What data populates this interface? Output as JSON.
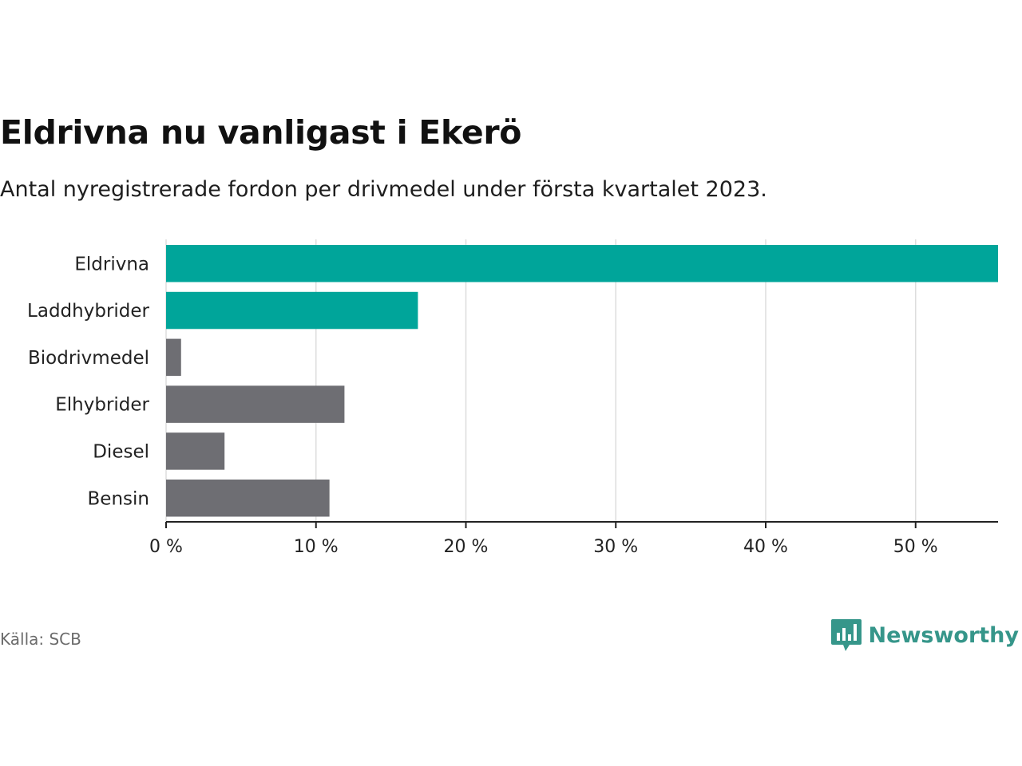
{
  "header": {
    "title": "Eldrivna nu vanligast i Ekerö",
    "subtitle": "Antal nyregistrerade fordon per drivmedel under första kvartalet 2023."
  },
  "footer": {
    "source": "Källa: SCB",
    "brand": "Newsworthy",
    "brand_icon": "bar-chart-speech-bubble-icon",
    "brand_color": "#36968a"
  },
  "colors": {
    "highlight": "#00a59a",
    "muted": "#6e6e73",
    "grid": "#dddddd",
    "axis": "#222222"
  },
  "chart_data": {
    "type": "bar",
    "orientation": "horizontal",
    "categories": [
      "Eldrivna",
      "Laddhybrider",
      "Biodrivmedel",
      "Elhybrider",
      "Diesel",
      "Bensin"
    ],
    "values": [
      55.5,
      16.8,
      1.0,
      11.9,
      3.9,
      10.9
    ],
    "highlighted": [
      true,
      true,
      false,
      false,
      false,
      false
    ],
    "xlim": [
      0,
      55.5
    ],
    "ticks": [
      0,
      10,
      20,
      30,
      40,
      50
    ],
    "tick_labels": [
      "0 %",
      "10 %",
      "20 %",
      "30 %",
      "40 %",
      "50 %"
    ],
    "xlabel": "",
    "ylabel": "",
    "grid": true
  }
}
